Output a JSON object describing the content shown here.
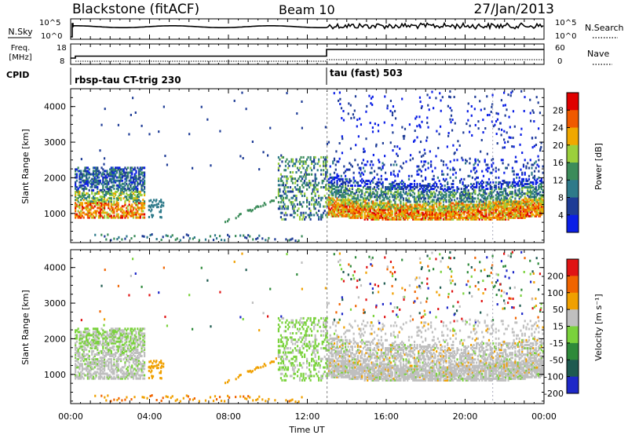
{
  "header": {
    "title": "Blackstone (fitACF)",
    "beam": "Beam 10",
    "date": "27/Jan/2013"
  },
  "top_panels": {
    "nsky_label": "N.Sky",
    "nsky_ticks": [
      "10^5",
      "10^0"
    ],
    "nsearch_label": "N.Search",
    "nsearch_ticks": [
      "10^5",
      "10^0"
    ],
    "freq_label_1": "Freq.",
    "freq_label_2": "[MHz]",
    "freq_ticks": [
      "18",
      "8"
    ],
    "nave_label": "Nave",
    "nave_ticks": [
      "60",
      "0"
    ],
    "cpid_label": "CPID",
    "cpid_segments": [
      {
        "label": "rbsp-tau CT-trig 230",
        "start_hour": 0,
        "end_hour": 13
      },
      {
        "label": "tau (fast) 503",
        "start_hour": 13,
        "end_hour": 24
      }
    ]
  },
  "x_axis": {
    "label": "Time UT",
    "ticks": [
      "00:00",
      "04:00",
      "08:00",
      "12:00",
      "16:00",
      "20:00",
      "00:00"
    ]
  },
  "chart_data": [
    {
      "type": "heatmap",
      "name": "power",
      "xlabel": "Time UT",
      "ylabel": "Slant Range [km]",
      "xlim": [
        0,
        24
      ],
      "ylim": [
        180,
        4500
      ],
      "yticks": [
        "1000",
        "2000",
        "3000",
        "4000"
      ],
      "colorbar": {
        "label": "Power [dB]",
        "ticks": [
          "4",
          "8",
          "12",
          "16",
          "20",
          "24",
          "28"
        ],
        "colors": [
          "#0a1ee6",
          "#1e3c96",
          "#2e7a8a",
          "#3c8c5a",
          "#9bcf3c",
          "#f0a800",
          "#f05a00",
          "#e00000"
        ]
      },
      "regions": [
        {
          "t": [
            0.2,
            3.7
          ],
          "r": [
            850,
            2250
          ],
          "level": "mixed-high"
        },
        {
          "t": [
            10.5,
            13.0
          ],
          "r": [
            800,
            2600
          ],
          "level": "mixed-mid"
        },
        {
          "t": [
            13.0,
            24.0
          ],
          "r": [
            800,
            2600
          ],
          "level": "mixed-high"
        },
        {
          "t": [
            1.2,
            12.0
          ],
          "r": [
            180,
            420
          ],
          "level": "low"
        }
      ]
    },
    {
      "type": "heatmap",
      "name": "velocity",
      "xlabel": "Time UT",
      "ylabel": "Slant Range [km]",
      "xlim": [
        0,
        24
      ],
      "ylim": [
        180,
        4500
      ],
      "yticks": [
        "1000",
        "2000",
        "3000",
        "4000"
      ],
      "colorbar": {
        "label": "Velocity [m s^-1]",
        "ticks": [
          "200",
          "100",
          "50",
          "15",
          "-15",
          "-50",
          "-100",
          "-200"
        ],
        "colors": [
          "#1e28c8",
          "#1e5a50",
          "#2e8a3a",
          "#7ad23c",
          "#bfbfbf",
          "#f0a000",
          "#f06400",
          "#e01414"
        ]
      }
    }
  ]
}
